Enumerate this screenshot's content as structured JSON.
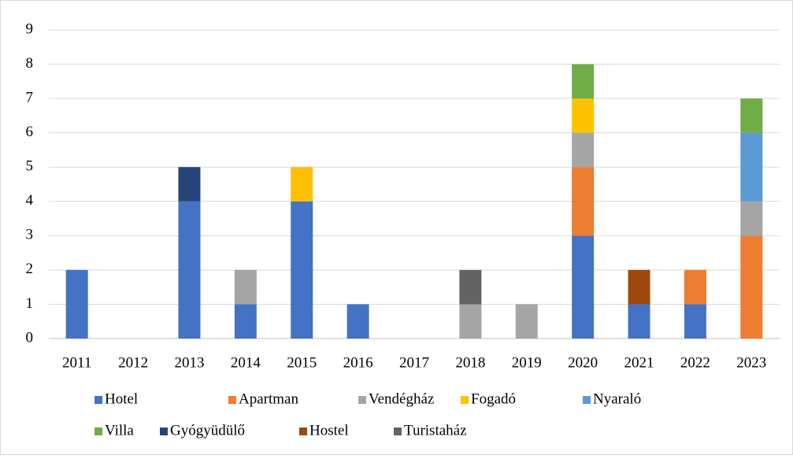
{
  "chart_data": {
    "type": "stacked_bar",
    "categories": [
      "2011",
      "2012",
      "2013",
      "2014",
      "2015",
      "2016",
      "2017",
      "2018",
      "2019",
      "2020",
      "2021",
      "2022",
      "2023"
    ],
    "series": [
      {
        "name": "Hotel",
        "color": "#4472c4",
        "values": [
          2,
          0,
          4,
          1,
          4,
          1,
          0,
          0,
          0,
          3,
          1,
          1,
          0
        ]
      },
      {
        "name": "Apartman",
        "color": "#ed7d31",
        "values": [
          0,
          0,
          0,
          0,
          0,
          0,
          0,
          0,
          0,
          2,
          0,
          1,
          3
        ]
      },
      {
        "name": "Vendégház",
        "color": "#a5a5a5",
        "values": [
          0,
          0,
          0,
          1,
          0,
          0,
          0,
          1,
          1,
          1,
          0,
          0,
          1
        ]
      },
      {
        "name": "Fogadó",
        "color": "#ffc000",
        "values": [
          0,
          0,
          0,
          0,
          1,
          0,
          0,
          0,
          0,
          1,
          0,
          0,
          0
        ]
      },
      {
        "name": "Nyaraló",
        "color": "#5b9bd5",
        "values": [
          0,
          0,
          0,
          0,
          0,
          0,
          0,
          0,
          0,
          0,
          0,
          0,
          2
        ]
      },
      {
        "name": "Villa",
        "color": "#70ad47",
        "values": [
          0,
          0,
          0,
          0,
          0,
          0,
          0,
          0,
          0,
          1,
          0,
          0,
          1
        ]
      },
      {
        "name": "Gyógyüdülő",
        "color": "#264478",
        "values": [
          0,
          0,
          1,
          0,
          0,
          0,
          0,
          0,
          0,
          0,
          0,
          0,
          0
        ]
      },
      {
        "name": "Hostel",
        "color": "#9e480e",
        "values": [
          0,
          0,
          0,
          0,
          0,
          0,
          0,
          0,
          0,
          0,
          1,
          0,
          0
        ]
      },
      {
        "name": "Turistaház",
        "color": "#636363",
        "values": [
          0,
          0,
          0,
          0,
          0,
          0,
          0,
          1,
          0,
          0,
          0,
          0,
          0
        ]
      }
    ],
    "ylim": [
      0,
      9
    ],
    "yticks": [
      0,
      1,
      2,
      3,
      4,
      5,
      6,
      7,
      8,
      9
    ],
    "grid": true,
    "legend": "bottom"
  }
}
